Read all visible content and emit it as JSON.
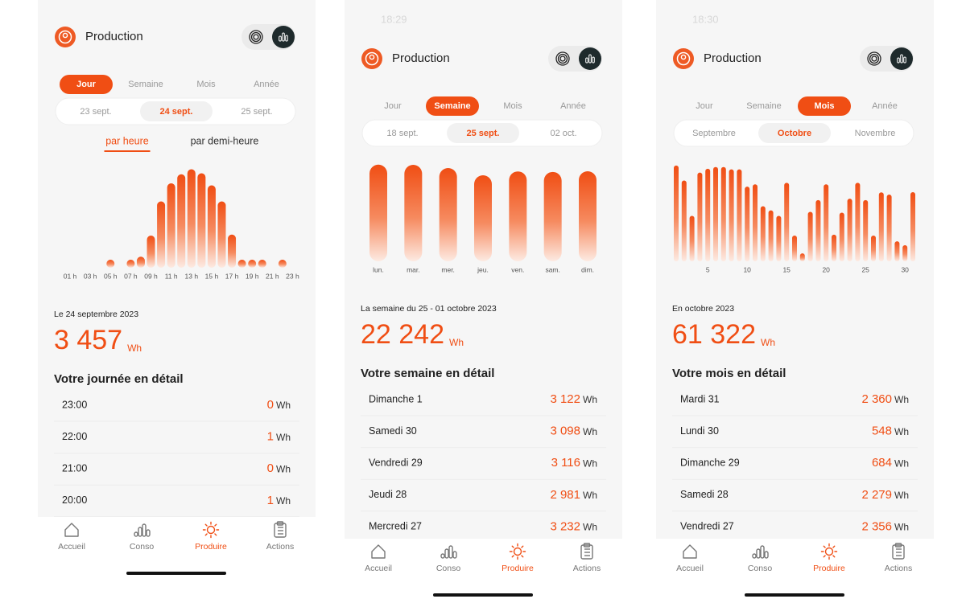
{
  "screens": [
    {
      "title": "Production",
      "tabs": [
        "Jour",
        "Semaine",
        "Mois",
        "Année"
      ],
      "active_tab": 0,
      "dates": [
        "23 sept.",
        "24 sept.",
        "25 sept."
      ],
      "active_date": 1,
      "subtabs": [
        "par heure",
        "par demi-heure"
      ],
      "active_subtab": 0,
      "chart_data": {
        "type": "bar",
        "color": "#f04e14",
        "categories": [
          "01 h",
          null,
          "03 h",
          null,
          "05 h",
          null,
          "07 h",
          null,
          "09 h",
          null,
          "11 h",
          null,
          "13 h",
          null,
          "15 h",
          null,
          "17 h",
          null,
          "19 h",
          null,
          "21 h",
          null,
          "23 h",
          null
        ],
        "values": [
          0,
          0,
          0,
          0,
          3,
          0,
          25,
          55,
          160,
          330,
          420,
          465,
          490,
          470,
          410,
          330,
          165,
          40,
          15,
          1,
          0,
          1,
          0,
          0
        ],
        "ylim": [
          0,
          500
        ]
      },
      "period_label": "Le 24 septembre 2023",
      "total": "3 457",
      "total_unit": "Wh",
      "detail_title": "Votre journée en détail",
      "details": [
        {
          "label": "23:00",
          "value": "0",
          "unit": "Wh"
        },
        {
          "label": "22:00",
          "value": "1",
          "unit": "Wh"
        },
        {
          "label": "21:00",
          "value": "0",
          "unit": "Wh"
        },
        {
          "label": "20:00",
          "value": "1",
          "unit": "Wh"
        }
      ],
      "nav": [
        "Accueil",
        "Conso",
        "Produire",
        "Actions"
      ],
      "active_nav": 2
    },
    {
      "status_time": "18:29",
      "title": "Production",
      "tabs": [
        "Jour",
        "Semaine",
        "Mois",
        "Année"
      ],
      "active_tab": 1,
      "dates": [
        "18 sept.",
        "25 sept.",
        "02 oct."
      ],
      "active_date": 1,
      "chart_data": {
        "type": "bar",
        "color": "#f04e14",
        "categories": [
          "lun.",
          "mar.",
          "mer.",
          "jeu.",
          "ven.",
          "sam.",
          "dim."
        ],
        "values": [
          3350,
          3343,
          3232,
          2981,
          3116,
          3098,
          3122
        ],
        "ylim": [
          0,
          3400
        ]
      },
      "period_label": "La semaine du 25 - 01 octobre 2023",
      "total": "22 242",
      "total_unit": "Wh",
      "detail_title": "Votre semaine en détail",
      "details": [
        {
          "label": "Dimanche 1",
          "value": "3 122",
          "unit": "Wh"
        },
        {
          "label": "Samedi 30",
          "value": "3 098",
          "unit": "Wh"
        },
        {
          "label": "Vendredi 29",
          "value": "3 116",
          "unit": "Wh"
        },
        {
          "label": "Jeudi 28",
          "value": "2 981",
          "unit": "Wh"
        },
        {
          "label": "Mercredi 27",
          "value": "3 232",
          "unit": "Wh"
        }
      ],
      "nav": [
        "Accueil",
        "Conso",
        "Produire",
        "Actions"
      ],
      "active_nav": 2
    },
    {
      "status_time": "18:30",
      "title": "Production",
      "tabs": [
        "Jour",
        "Semaine",
        "Mois",
        "Année"
      ],
      "active_tab": 2,
      "dates": [
        "Septembre",
        "Octobre",
        "Novembre"
      ],
      "active_date": 1,
      "chart_data": {
        "type": "bar",
        "color": "#f04e14",
        "categories": [
          null,
          null,
          null,
          null,
          "5",
          null,
          null,
          null,
          null,
          "10",
          null,
          null,
          null,
          null,
          "15",
          null,
          null,
          null,
          null,
          "20",
          null,
          null,
          null,
          null,
          "25",
          null,
          null,
          null,
          null,
          "30",
          null
        ],
        "values": [
          3270,
          2760,
          1550,
          3030,
          3160,
          3220,
          3220,
          3140,
          3140,
          2550,
          2630,
          1880,
          1740,
          1550,
          2680,
          880,
          270,
          1690,
          2090,
          2630,
          910,
          1660,
          2140,
          2680,
          2090,
          880,
          2356,
          2279,
          684,
          548,
          2360
        ],
        "ylim": [
          0,
          3350
        ]
      },
      "period_label": "En octobre 2023",
      "total": "61 322",
      "total_unit": "Wh",
      "detail_title": "Votre mois en détail",
      "details": [
        {
          "label": "Mardi 31",
          "value": "2 360",
          "unit": "Wh"
        },
        {
          "label": "Lundi 30",
          "value": "548",
          "unit": "Wh"
        },
        {
          "label": "Dimanche 29",
          "value": "684",
          "unit": "Wh"
        },
        {
          "label": "Samedi 28",
          "value": "2 279",
          "unit": "Wh"
        },
        {
          "label": "Vendredi 27",
          "value": "2 356",
          "unit": "Wh"
        }
      ],
      "nav": [
        "Accueil",
        "Conso",
        "Produire",
        "Actions"
      ],
      "active_nav": 2
    }
  ]
}
